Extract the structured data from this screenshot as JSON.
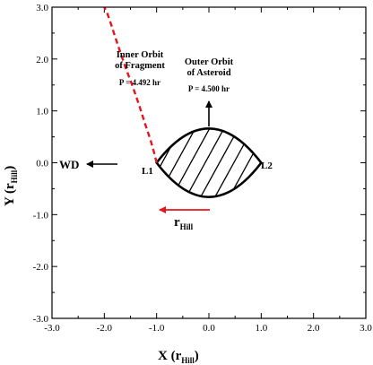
{
  "chart_data": {
    "type": "line",
    "xlabel": "X (r",
    "xlabel_sub": "Hill",
    "xlabel_close": ")",
    "ylabel": "Y (r",
    "ylabel_sub": "Hill",
    "ylabel_close": ")",
    "xlim": [
      -3.0,
      3.0
    ],
    "ylim": [
      -3.0,
      3.0
    ],
    "x_ticks": [
      -3.0,
      -2.0,
      -1.0,
      0.0,
      1.0,
      2.0,
      3.0
    ],
    "y_ticks": [
      -3.0,
      -2.0,
      -1.0,
      0.0,
      1.0,
      2.0,
      3.0
    ],
    "x_tick_labels": [
      "-3.0",
      "-2.0",
      "-1.0",
      "0.0",
      "1.0",
      "2.0",
      "3.0"
    ],
    "y_tick_labels": [
      "-3.0",
      "-2.0",
      "-1.0",
      "0.0",
      "1.0",
      "2.0",
      "3.0"
    ],
    "grid": false,
    "colors": {
      "fragment_orbit": "#e8141c",
      "r_hill_arrow": "#e8141c",
      "ink": "#000000"
    },
    "series": [
      {
        "name": "Inner Orbit of Fragment",
        "style": "dashed",
        "x": [
          -1.0,
          -1.05,
          -1.12,
          -1.22,
          -1.33,
          -1.45,
          -1.58,
          -1.7,
          -1.8,
          -1.88,
          -1.95,
          -2.0
        ],
        "y": [
          0.0,
          0.2,
          0.45,
          0.75,
          1.1,
          1.45,
          1.8,
          2.15,
          2.45,
          2.7,
          2.9,
          3.0
        ]
      }
    ],
    "lobe": {
      "vertices_x": [
        -1.0,
        1.0
      ],
      "top_y": 0.66,
      "bottom_y": -0.66,
      "hatched": true
    },
    "annotations": {
      "inner_orbit_line1": "Inner Orbit",
      "inner_orbit_line2": "of Fragment",
      "inner_period": "P = 4.492 hr",
      "outer_orbit_line1": "Outer Orbit",
      "outer_orbit_line2": "of Asteroid",
      "outer_period": "P = 4.500 hr",
      "wd_label": "WD",
      "l1_label": "L1",
      "l2_label": "L2",
      "r_label": "r",
      "r_sub": "Hill"
    }
  }
}
